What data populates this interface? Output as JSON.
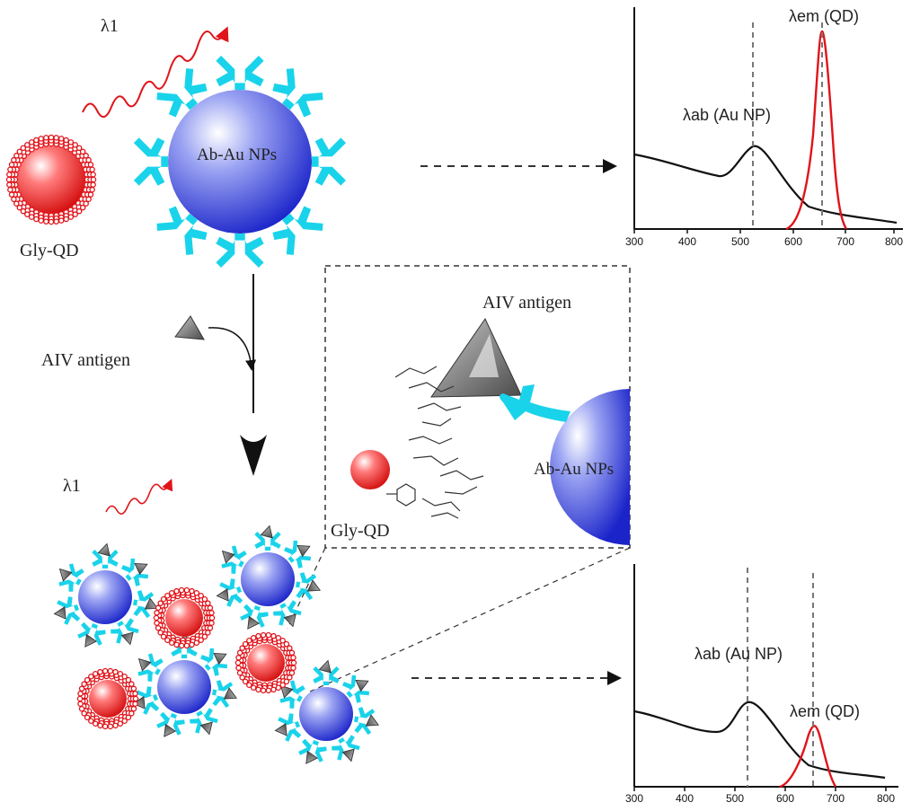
{
  "labels": {
    "lambda1_top": "λ1",
    "lambda1_bottom": "λ1",
    "gly_qd": "Gly-QD",
    "ab_au_nps": "Ab-Au NPs",
    "aiv_antigen_left": "AIV antigen",
    "aiv_antigen_inset": "AIV antigen",
    "gly_qd_inset": "Gly-QD",
    "ab_au_nps_inset": "Ab-Au NPs"
  },
  "spectrum_top": {
    "lambda_ab_label": "λab (Au NP)",
    "lambda_em_label": "λem (QD)",
    "x_ticks": [
      "300",
      "400",
      "500",
      "600",
      "700",
      "800"
    ]
  },
  "spectrum_bottom": {
    "lambda_ab_label": "λab (Au NP)",
    "lambda_em_label": "λem (QD)",
    "x_ticks": [
      "300",
      "400",
      "500",
      "600",
      "700",
      "800"
    ]
  },
  "colors": {
    "qd_red": "#e11b1b",
    "au_blue": "#1f2fd6",
    "antibody_cyan": "#19d3ea",
    "antigen_gray": "#6f6f6f",
    "emission_red": "#e0141a"
  }
}
